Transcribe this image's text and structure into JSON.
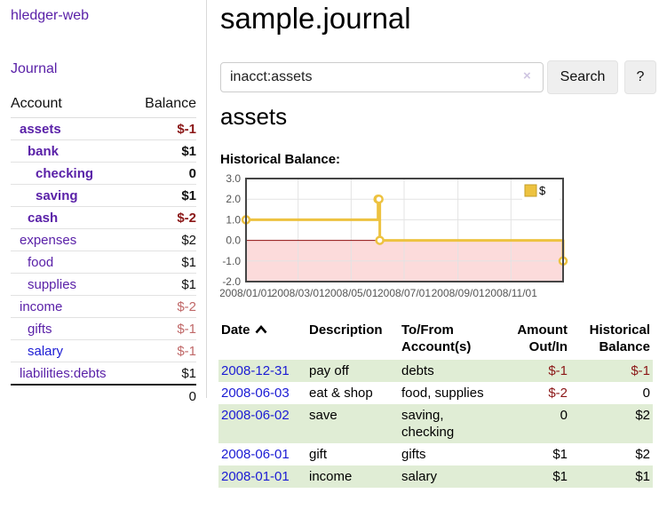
{
  "brand": "hledger-web",
  "nav": {
    "journal": "Journal"
  },
  "accounts_panel": {
    "col_account": "Account",
    "col_balance": "Balance",
    "rows": [
      {
        "name": "assets",
        "balance": "$-1"
      },
      {
        "name": "bank",
        "balance": "$1"
      },
      {
        "name": "checking",
        "balance": "0"
      },
      {
        "name": "saving",
        "balance": "$1"
      },
      {
        "name": "cash",
        "balance": "$-2"
      },
      {
        "name": "expenses",
        "balance": "$2"
      },
      {
        "name": "food",
        "balance": "$1"
      },
      {
        "name": "supplies",
        "balance": "$1"
      },
      {
        "name": "income",
        "balance": "$-2"
      },
      {
        "name": "gifts",
        "balance": "$-1"
      },
      {
        "name": "salary",
        "balance": "$-1"
      },
      {
        "name": "liabilities:debts",
        "balance": "$1"
      }
    ],
    "total": "0"
  },
  "header": {
    "title": "sample.journal"
  },
  "search": {
    "value": "inacct:assets",
    "clear": "×",
    "submit": "Search",
    "help": "?"
  },
  "account_view": {
    "heading": "assets",
    "chart_title": "Historical Balance:"
  },
  "chart_data": {
    "type": "line",
    "subtype": "step-after",
    "title": "Historical Balance:",
    "series": [
      {
        "name": "$",
        "points": [
          {
            "date": "2008-01-01",
            "day": 0,
            "value": 1
          },
          {
            "date": "2008-06-01",
            "day": 152,
            "value": 2
          },
          {
            "date": "2008-06-02",
            "day": 153,
            "value": 2
          },
          {
            "date": "2008-06-03",
            "day": 154,
            "value": 0
          },
          {
            "date": "2008-12-31",
            "day": 365,
            "value": -1
          }
        ]
      }
    ],
    "x_ticks": [
      {
        "label": "2008/01/01",
        "day": 0
      },
      {
        "label": "2008/03/01",
        "day": 60
      },
      {
        "label": "2008/05/01",
        "day": 121
      },
      {
        "label": "2008/07/01",
        "day": 182
      },
      {
        "label": "2008/09/01",
        "day": 244
      },
      {
        "label": "2008/11/01",
        "day": 305
      }
    ],
    "y_ticks": [
      3.0,
      2.0,
      1.0,
      0.0,
      -1.0,
      -2.0
    ],
    "ylim": [
      -2,
      3
    ],
    "xlim_days": [
      0,
      365
    ],
    "grid": true,
    "legend_position": "top-right",
    "colors": {
      "series": "#edc240",
      "negative_region": "#fcdbdb",
      "zero_line": "#8f0e0e",
      "plot_border": "#454545",
      "gridline": "#e3e3e3",
      "tick_text": "#555555"
    }
  },
  "register": {
    "headers": {
      "date": "Date",
      "description": "Description",
      "accounts": "To/From Account(s)",
      "amount": "Amount Out/In",
      "balance": "Historical Balance"
    },
    "rows": [
      {
        "date": "2008-12-31",
        "description": "pay off",
        "accounts": "debts",
        "amount": "$-1",
        "balance": "$-1"
      },
      {
        "date": "2008-06-03",
        "description": "eat & shop",
        "accounts": "food, supplies",
        "amount": "$-2",
        "balance": "0"
      },
      {
        "date": "2008-06-02",
        "description": "save",
        "accounts": "saving, checking",
        "amount": "0",
        "balance": "$2"
      },
      {
        "date": "2008-06-01",
        "description": "gift",
        "accounts": "gifts",
        "amount": "$1",
        "balance": "$2"
      },
      {
        "date": "2008-01-01",
        "description": "income",
        "accounts": "salary",
        "amount": "$1",
        "balance": "$1"
      }
    ]
  },
  "colors": {
    "link_purple": "#5a21a8",
    "link_blue": "#1b1bd4",
    "negative_strong": "#8b1717",
    "negative_muted": "#c06868",
    "row_stripe_green": "#e0edd5"
  }
}
